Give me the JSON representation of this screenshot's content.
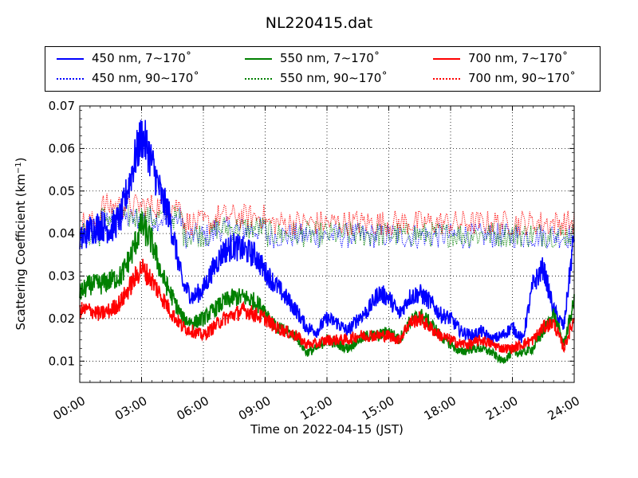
{
  "chart_data": {
    "type": "line",
    "title": "NL220415.dat",
    "xlabel": "Time on 2022-04-15 (JST)",
    "ylabel": "Scattering Coefficient (km",
    "ylabel_sup": "−1",
    "ylabel_close": ")",
    "xlim": [
      0,
      24
    ],
    "ylim": [
      0.005,
      0.07
    ],
    "x_ticks": [
      0,
      3,
      6,
      9,
      12,
      15,
      18,
      21,
      24
    ],
    "x_tick_labels": [
      "00:00",
      "03:00",
      "06:00",
      "09:00",
      "12:00",
      "15:00",
      "18:00",
      "21:00",
      "24:00"
    ],
    "y_ticks": [
      0.01,
      0.02,
      0.03,
      0.04,
      0.05,
      0.06,
      0.07
    ],
    "y_tick_labels": [
      "0.01",
      "0.02",
      "0.03",
      "0.04",
      "0.05",
      "0.06",
      "0.07"
    ],
    "grid": true,
    "legend_position": "top, above plot",
    "series": [
      {
        "name": "450 nm, 7∼170˚",
        "color": "#0000ff",
        "style": "solid",
        "x": [
          0,
          0.5,
          1,
          1.5,
          2,
          2.3,
          2.6,
          3,
          3.3,
          3.6,
          4,
          4.3,
          4.6,
          5,
          5.5,
          6,
          6.5,
          7,
          7.5,
          8,
          8.5,
          9,
          9.5,
          10,
          10.5,
          11,
          11.5,
          12,
          12.5,
          13,
          13.5,
          14,
          14.5,
          15,
          15.5,
          16,
          16.5,
          17,
          17.5,
          18,
          18.5,
          19,
          19.5,
          20,
          20.5,
          21,
          21.5,
          22,
          22.5,
          23,
          23.5,
          24
        ],
        "y": [
          0.038,
          0.041,
          0.042,
          0.041,
          0.044,
          0.05,
          0.056,
          0.063,
          0.06,
          0.055,
          0.048,
          0.045,
          0.038,
          0.028,
          0.025,
          0.027,
          0.032,
          0.036,
          0.037,
          0.036,
          0.035,
          0.031,
          0.028,
          0.025,
          0.022,
          0.018,
          0.017,
          0.02,
          0.019,
          0.017,
          0.02,
          0.022,
          0.026,
          0.025,
          0.021,
          0.025,
          0.026,
          0.024,
          0.021,
          0.02,
          0.017,
          0.016,
          0.017,
          0.015,
          0.016,
          0.018,
          0.015,
          0.028,
          0.032,
          0.022,
          0.018,
          0.04
        ]
      },
      {
        "name": "550 nm, 7∼170˚",
        "color": "#008000",
        "style": "solid",
        "x": [
          0,
          0.5,
          1,
          1.5,
          2,
          2.5,
          3,
          3.5,
          4,
          4.5,
          5,
          5.5,
          6,
          6.5,
          7,
          7.5,
          8,
          8.5,
          9,
          9.5,
          10,
          10.5,
          11,
          11.5,
          12,
          12.5,
          13,
          13.5,
          14,
          14.5,
          15,
          15.5,
          16,
          16.5,
          17,
          17.5,
          18,
          18.5,
          19,
          19.5,
          20,
          20.5,
          21,
          21.5,
          22,
          22.5,
          23,
          23.5,
          24
        ],
        "y": [
          0.026,
          0.028,
          0.028,
          0.029,
          0.03,
          0.035,
          0.042,
          0.038,
          0.03,
          0.025,
          0.02,
          0.019,
          0.02,
          0.022,
          0.024,
          0.025,
          0.025,
          0.024,
          0.022,
          0.018,
          0.017,
          0.016,
          0.012,
          0.013,
          0.015,
          0.014,
          0.013,
          0.015,
          0.016,
          0.016,
          0.017,
          0.015,
          0.019,
          0.021,
          0.019,
          0.016,
          0.014,
          0.012,
          0.013,
          0.013,
          0.012,
          0.01,
          0.012,
          0.012,
          0.013,
          0.017,
          0.021,
          0.014,
          0.024
        ]
      },
      {
        "name": "700 nm, 7∼170˚",
        "color": "#ff0000",
        "style": "solid",
        "x": [
          0,
          0.5,
          1,
          1.5,
          2,
          2.5,
          3,
          3.5,
          4,
          4.5,
          5,
          5.5,
          6,
          6.5,
          7,
          7.5,
          8,
          8.5,
          9,
          9.5,
          10,
          10.5,
          11,
          11.5,
          12,
          12.5,
          13,
          13.5,
          14,
          14.5,
          15,
          15.5,
          16,
          16.5,
          17,
          17.5,
          18,
          18.5,
          19,
          19.5,
          20,
          20.5,
          21,
          21.5,
          22,
          22.5,
          23,
          23.5,
          24
        ],
        "y": [
          0.022,
          0.022,
          0.021,
          0.022,
          0.024,
          0.028,
          0.032,
          0.029,
          0.025,
          0.021,
          0.018,
          0.017,
          0.016,
          0.018,
          0.02,
          0.021,
          0.022,
          0.021,
          0.02,
          0.018,
          0.017,
          0.016,
          0.014,
          0.014,
          0.015,
          0.015,
          0.015,
          0.016,
          0.016,
          0.016,
          0.016,
          0.015,
          0.019,
          0.02,
          0.018,
          0.016,
          0.015,
          0.014,
          0.014,
          0.015,
          0.014,
          0.013,
          0.013,
          0.014,
          0.015,
          0.018,
          0.019,
          0.013,
          0.02
        ]
      },
      {
        "name": "450 nm, 90∼170˚",
        "color": "#0000ff",
        "style": "dotted",
        "mean": 0.0395
      },
      {
        "name": "550 nm, 90∼170˚",
        "color": "#008000",
        "style": "dotted",
        "mean": 0.0398
      },
      {
        "name": "700 nm, 90∼170˚",
        "color": "#ff0000",
        "style": "dotted",
        "mean": 0.0425
      }
    ]
  }
}
